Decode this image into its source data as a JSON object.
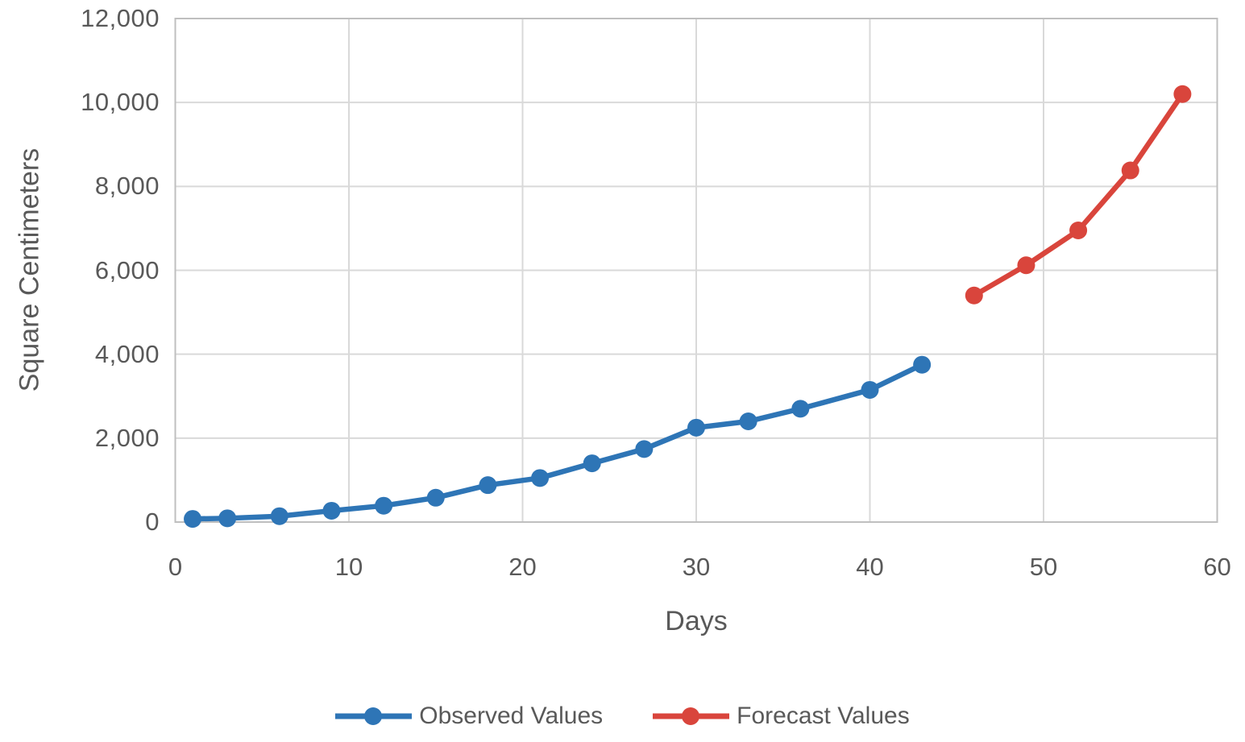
{
  "chart_data": {
    "type": "line",
    "title": "",
    "xlabel": "Days",
    "ylabel": "Square Centimeters",
    "xlim": [
      0,
      60
    ],
    "ylim": [
      0,
      12000
    ],
    "xticks": [
      0,
      10,
      20,
      30,
      40,
      50,
      60
    ],
    "xtick_labels": [
      "0",
      "10",
      "20",
      "30",
      "40",
      "50",
      "60"
    ],
    "yticks": [
      0,
      2000,
      4000,
      6000,
      8000,
      10000,
      12000
    ],
    "ytick_labels": [
      "0",
      "2,000",
      "4,000",
      "6,000",
      "8,000",
      "10,000",
      "12,000"
    ],
    "grid": true,
    "legend_position": "bottom",
    "series": [
      {
        "name": "Observed Values",
        "color": "#2E75B6",
        "marker": "circle",
        "x": [
          1,
          3,
          6,
          9,
          12,
          15,
          18,
          21,
          24,
          27,
          30,
          33,
          36,
          40,
          43
        ],
        "y": [
          75,
          90,
          140,
          270,
          390,
          580,
          880,
          1050,
          1400,
          1740,
          2250,
          2400,
          2700,
          3150,
          3750
        ]
      },
      {
        "name": "Forecast Values",
        "color": "#D9453C",
        "marker": "circle",
        "x": [
          46,
          49,
          52,
          55,
          58
        ],
        "y": [
          5400,
          6120,
          6950,
          8380,
          10200
        ]
      }
    ],
    "colors": {
      "grid": "#D9D9D9",
      "border": "#BFBFBF",
      "text": "#595959",
      "background": "#FFFFFF"
    }
  }
}
